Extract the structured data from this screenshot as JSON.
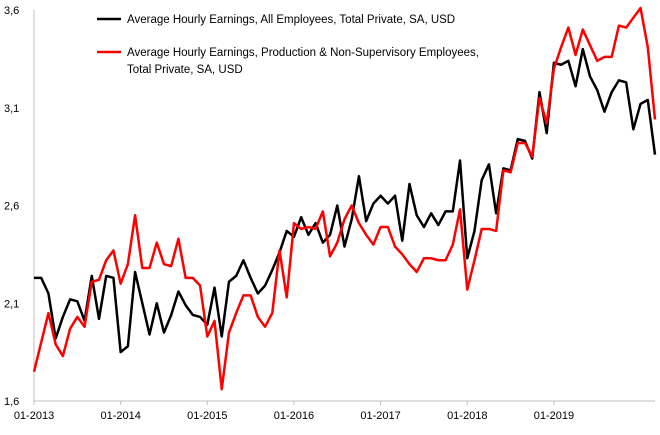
{
  "chart_data": {
    "type": "line",
    "title": "",
    "xlabel": "",
    "ylabel": "",
    "ylim": [
      1.6,
      3.6
    ],
    "yticks": [
      "1,6",
      "2,1",
      "2,6",
      "3,1",
      "3,6"
    ],
    "ytick_values": [
      1.6,
      2.1,
      2.6,
      3.1,
      3.6
    ],
    "xticks": [
      "01-2013",
      "01-2014",
      "01-2015",
      "01-2016",
      "01-2017",
      "01-2018",
      "01-2019"
    ],
    "xtick_index": [
      0,
      12,
      24,
      36,
      48,
      60,
      72
    ],
    "grid": false,
    "legend_position": "top-left",
    "series": [
      {
        "name": "Average Hourly Earnings, All Employees, Total Private, SA, USD",
        "color": "#000000",
        "values": [
          2.23,
          2.23,
          2.15,
          1.92,
          2.03,
          2.12,
          2.11,
          2.01,
          2.24,
          2.02,
          2.24,
          2.23,
          1.85,
          1.88,
          2.26,
          2.1,
          1.94,
          2.1,
          1.95,
          2.04,
          2.16,
          2.09,
          2.04,
          2.03,
          1.99,
          2.18,
          1.93,
          2.21,
          2.24,
          2.32,
          2.23,
          2.15,
          2.19,
          2.27,
          2.36,
          2.47,
          2.44,
          2.54,
          2.45,
          2.51,
          2.41,
          2.45,
          2.6,
          2.39,
          2.53,
          2.75,
          2.52,
          2.61,
          2.65,
          2.61,
          2.65,
          2.42,
          2.71,
          2.55,
          2.49,
          2.56,
          2.5,
          2.57,
          2.57,
          2.83,
          2.33,
          2.47,
          2.73,
          2.81,
          2.56,
          2.79,
          2.78,
          2.94,
          2.93,
          2.84,
          3.18,
          2.97,
          3.33,
          3.32,
          3.34,
          3.21,
          3.4,
          3.26,
          3.19,
          3.08,
          3.18,
          3.24,
          3.23,
          2.99,
          3.12,
          3.14,
          2.86
        ]
      },
      {
        "name": "Average Hourly Earnings, Production & Non-Supervisory Employees, Total Private, SA, USD",
        "color": "#ff0000",
        "values": [
          1.75,
          1.9,
          2.05,
          1.89,
          1.83,
          1.97,
          2.03,
          1.98,
          2.21,
          2.22,
          2.32,
          2.37,
          2.2,
          2.3,
          2.55,
          2.28,
          2.28,
          2.41,
          2.3,
          2.29,
          2.43,
          2.23,
          2.23,
          2.19,
          1.93,
          2.01,
          1.66,
          1.95,
          2.05,
          2.14,
          2.14,
          2.03,
          1.98,
          2.05,
          2.37,
          2.13,
          2.51,
          2.48,
          2.49,
          2.48,
          2.57,
          2.34,
          2.41,
          2.53,
          2.6,
          2.51,
          2.45,
          2.4,
          2.49,
          2.49,
          2.39,
          2.35,
          2.3,
          2.26,
          2.33,
          2.33,
          2.32,
          2.32,
          2.4,
          2.58,
          2.17,
          2.32,
          2.48,
          2.48,
          2.47,
          2.78,
          2.77,
          2.92,
          2.92,
          2.85,
          3.15,
          3.02,
          3.3,
          3.41,
          3.51,
          3.37,
          3.5,
          3.42,
          3.34,
          3.36,
          3.36,
          3.52,
          3.51,
          3.56,
          3.61,
          3.41,
          3.04
        ]
      }
    ]
  }
}
